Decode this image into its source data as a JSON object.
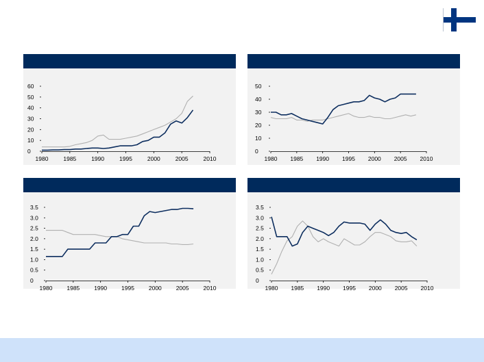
{
  "colors": {
    "header": "#002a5c",
    "panel_bg": "#f2f2f2",
    "series_dark": "#0c2d5e",
    "series_light": "#b0b0b0",
    "footer": "#cfe2fa",
    "flag_blue": "#003580"
  },
  "flag_icon": "finland-flag-icon",
  "chart_data": [
    {
      "type": "line",
      "title": "",
      "xlabel": "",
      "ylabel": "",
      "xlim": [
        1980,
        2010
      ],
      "ylim": [
        0,
        60
      ],
      "xticks": [
        1980,
        1985,
        1990,
        1995,
        2000,
        2005,
        2010
      ],
      "yticks": [
        0,
        10,
        20,
        30,
        40,
        50,
        60
      ],
      "xtick_labels": [
        "1980",
        "1985",
        "1990",
        "1995",
        "2000",
        "2005",
        "2010"
      ],
      "ytick_labels": [
        "0",
        "10",
        "20",
        "30",
        "40",
        "50",
        "60"
      ],
      "series": [
        {
          "name": "dark",
          "color": "#0c2d5e",
          "x": [
            1980,
            1981,
            1982,
            1983,
            1984,
            1985,
            1986,
            1987,
            1988,
            1989,
            1990,
            1991,
            1992,
            1993,
            1994,
            1995,
            1996,
            1997,
            1998,
            1999,
            2000,
            2001,
            2002,
            2003,
            2004,
            2005,
            2006,
            2007
          ],
          "y": [
            1,
            1,
            1.2,
            1.2,
            1.5,
            1.5,
            2,
            2,
            2.5,
            3,
            3,
            2.5,
            3,
            4,
            5,
            5,
            5,
            6,
            9,
            10,
            13,
            13,
            17,
            25,
            28,
            26,
            31,
            38
          ]
        },
        {
          "name": "light",
          "color": "#b0b0b0",
          "x": [
            1980,
            1981,
            1982,
            1983,
            1984,
            1985,
            1986,
            1987,
            1988,
            1989,
            1990,
            1991,
            1992,
            1993,
            1994,
            1995,
            1996,
            1997,
            1998,
            1999,
            2000,
            2001,
            2002,
            2003,
            2004,
            2005,
            2006,
            2007
          ],
          "y": [
            4,
            4,
            4,
            4,
            4,
            4.5,
            6,
            7,
            8,
            10,
            14,
            15,
            11,
            11,
            11,
            12,
            13,
            14,
            16,
            18,
            20,
            22,
            24,
            27,
            30,
            35,
            46,
            51
          ]
        }
      ]
    },
    {
      "type": "line",
      "title": "",
      "xlabel": "",
      "ylabel": "",
      "xlim": [
        1980,
        2010
      ],
      "ylim": [
        0,
        50
      ],
      "xticks": [
        1980,
        1985,
        1990,
        1995,
        2000,
        2005,
        2010
      ],
      "yticks": [
        0,
        10,
        20,
        30,
        40,
        50
      ],
      "xtick_labels": [
        "1980",
        "1985",
        "1990",
        "1995",
        "2000",
        "2005",
        "2010"
      ],
      "ytick_labels": [
        "0",
        "10",
        "20",
        "30",
        "40",
        "50"
      ],
      "series": [
        {
          "name": "dark",
          "color": "#0c2d5e",
          "x": [
            1980,
            1981,
            1982,
            1983,
            1984,
            1985,
            1986,
            1987,
            1988,
            1989,
            1990,
            1991,
            1992,
            1993,
            1994,
            1995,
            1996,
            1997,
            1998,
            1999,
            2000,
            2001,
            2002,
            2003,
            2004,
            2005,
            2006,
            2007,
            2008
          ],
          "y": [
            30,
            30,
            28,
            28,
            29,
            27,
            25,
            24,
            23,
            22,
            21,
            26,
            32,
            35,
            36,
            37,
            38,
            38,
            39,
            43,
            41,
            40,
            38,
            40,
            41,
            44,
            44,
            44,
            44
          ]
        },
        {
          "name": "light",
          "color": "#b0b0b0",
          "x": [
            1980,
            1981,
            1982,
            1983,
            1984,
            1985,
            1986,
            1987,
            1988,
            1989,
            1990,
            1991,
            1992,
            1993,
            1994,
            1995,
            1996,
            1997,
            1998,
            1999,
            2000,
            2001,
            2002,
            2003,
            2004,
            2005,
            2006,
            2007,
            2008
          ],
          "y": [
            26,
            25,
            25,
            25,
            26,
            24,
            24,
            23,
            24,
            24,
            24,
            25,
            26,
            27,
            28,
            29,
            27,
            26,
            26,
            27,
            26,
            26,
            25,
            25,
            26,
            27,
            28,
            27,
            28
          ]
        }
      ]
    },
    {
      "type": "line",
      "title": "",
      "xlabel": "",
      "ylabel": "",
      "xlim": [
        1980,
        2010
      ],
      "ylim": [
        0,
        3.5
      ],
      "xticks": [
        1980,
        1985,
        1990,
        1995,
        2000,
        2005,
        2010
      ],
      "yticks": [
        0,
        0.5,
        1.0,
        1.5,
        2.0,
        2.5,
        3.0,
        3.5
      ],
      "xtick_labels": [
        "1980",
        "1985",
        "1990",
        "1995",
        "2000",
        "2005",
        "2010"
      ],
      "ytick_labels": [
        "0",
        "0.5",
        "1.0",
        "1.5",
        "2.0",
        "2.5",
        "3.0",
        "3.5"
      ],
      "series": [
        {
          "name": "dark",
          "color": "#0c2d5e",
          "x": [
            1980,
            1981,
            1982,
            1983,
            1984,
            1985,
            1986,
            1987,
            1988,
            1989,
            1990,
            1991,
            1992,
            1993,
            1994,
            1995,
            1996,
            1997,
            1998,
            1999,
            2000,
            2001,
            2002,
            2003,
            2004,
            2005,
            2006,
            2007
          ],
          "y": [
            1.15,
            1.15,
            1.15,
            1.15,
            1.5,
            1.5,
            1.5,
            1.5,
            1.5,
            1.8,
            1.8,
            1.8,
            2.1,
            2.1,
            2.2,
            2.2,
            2.6,
            2.6,
            3.1,
            3.3,
            3.25,
            3.3,
            3.35,
            3.4,
            3.4,
            3.45,
            3.45,
            3.43
          ]
        },
        {
          "name": "light",
          "color": "#b0b0b0",
          "x": [
            1980,
            1981,
            1982,
            1983,
            1984,
            1985,
            1986,
            1987,
            1988,
            1989,
            1990,
            1991,
            1992,
            1993,
            1994,
            1995,
            1996,
            1997,
            1998,
            1999,
            2000,
            2001,
            2002,
            2003,
            2004,
            2005,
            2006,
            2007
          ],
          "y": [
            2.4,
            2.4,
            2.4,
            2.4,
            2.3,
            2.2,
            2.2,
            2.2,
            2.2,
            2.2,
            2.15,
            2.1,
            2.1,
            2.1,
            2.0,
            1.95,
            1.9,
            1.85,
            1.8,
            1.8,
            1.8,
            1.8,
            1.8,
            1.75,
            1.75,
            1.72,
            1.72,
            1.75
          ]
        }
      ]
    },
    {
      "type": "line",
      "title": "",
      "xlabel": "",
      "ylabel": "",
      "xlim": [
        1980,
        2010
      ],
      "ylim": [
        0,
        3.5
      ],
      "xticks": [
        1980,
        1985,
        1990,
        1995,
        2000,
        2005,
        2010
      ],
      "yticks": [
        0,
        0.5,
        1.0,
        1.5,
        2.0,
        2.5,
        3.0,
        3.5
      ],
      "xtick_labels": [
        "1980",
        "1985",
        "1990",
        "1995",
        "2000",
        "2005",
        "2010"
      ],
      "ytick_labels": [
        "0",
        "0.5",
        "1.0",
        "1.5",
        "2.0",
        "2.5",
        "3.0",
        "3.5"
      ],
      "series": [
        {
          "name": "dark",
          "color": "#0c2d5e",
          "x": [
            1980,
            1981,
            1982,
            1983,
            1984,
            1985,
            1986,
            1987,
            1988,
            1989,
            1990,
            1991,
            1992,
            1993,
            1994,
            1995,
            1996,
            1997,
            1998,
            1999,
            2000,
            2001,
            2002,
            2003,
            2004,
            2005,
            2006,
            2007,
            2008
          ],
          "y": [
            3.05,
            2.1,
            2.1,
            2.1,
            1.65,
            1.75,
            2.3,
            2.6,
            2.5,
            2.4,
            2.3,
            2.15,
            2.3,
            2.6,
            2.8,
            2.75,
            2.75,
            2.75,
            2.7,
            2.4,
            2.7,
            2.9,
            2.7,
            2.4,
            2.3,
            2.25,
            2.3,
            2.1,
            1.95
          ]
        },
        {
          "name": "light",
          "color": "#b0b0b0",
          "x": [
            1980,
            1981,
            1982,
            1983,
            1984,
            1985,
            1986,
            1987,
            1988,
            1989,
            1990,
            1991,
            1992,
            1993,
            1994,
            1995,
            1996,
            1997,
            1998,
            1999,
            2000,
            2001,
            2002,
            2003,
            2004,
            2005,
            2006,
            2007,
            2008
          ],
          "y": [
            0.3,
            0.8,
            1.4,
            1.9,
            2.1,
            2.6,
            2.85,
            2.6,
            2.1,
            1.85,
            2.0,
            1.85,
            1.75,
            1.65,
            2.0,
            1.85,
            1.7,
            1.7,
            1.85,
            2.1,
            2.3,
            2.3,
            2.2,
            2.1,
            1.9,
            1.85,
            1.85,
            1.9,
            1.65
          ]
        }
      ]
    }
  ]
}
